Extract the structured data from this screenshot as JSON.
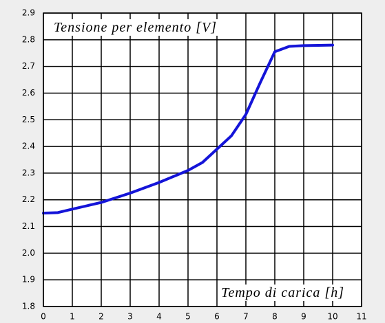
{
  "chart_data": {
    "type": "line",
    "xlabel": "Tempo di carica [h]",
    "ylabel": "Tensione per elemento [V]",
    "x": [
      0,
      0.5,
      1,
      2,
      3,
      4,
      5,
      5.5,
      6,
      6.5,
      7,
      7.5,
      8,
      8.5,
      9,
      10
    ],
    "series": [
      {
        "color": "#1414d8",
        "values": [
          2.15,
          2.152,
          2.165,
          2.19,
          2.225,
          2.265,
          2.31,
          2.34,
          2.39,
          2.44,
          2.52,
          2.64,
          2.755,
          2.775,
          2.778,
          2.78
        ]
      }
    ],
    "xlim": [
      0,
      11
    ],
    "ylim": [
      1.8,
      2.9
    ],
    "xticks": [
      0,
      1,
      2,
      3,
      4,
      5,
      6,
      7,
      8,
      9,
      10,
      11
    ],
    "yticks": [
      1.8,
      1.9,
      {
        "value": 2,
        "label": "2.0"
      },
      2.1,
      2.2,
      2.3,
      2.4,
      2.5,
      2.6,
      2.7,
      2.8,
      2.9
    ],
    "grid": true
  }
}
